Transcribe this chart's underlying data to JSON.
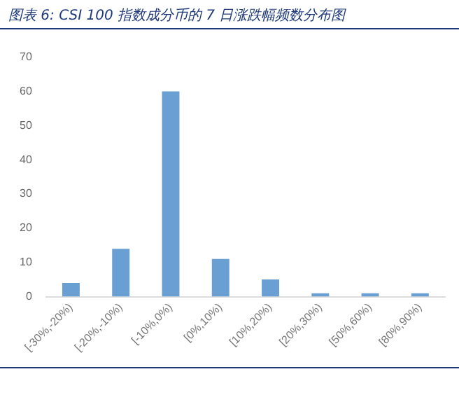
{
  "chart_data": {
    "type": "bar",
    "title": "图表 6:  CSI 100 指数成分币的 7 日涨跌幅频数分布图",
    "categories": [
      "[-30%,-20%)",
      "[-20%,-10%)",
      "[-10%,0%)",
      "[0%,10%)",
      "[10%,20%)",
      "[20%,30%)",
      "[50%,60%)",
      "[80%,90%)"
    ],
    "values": [
      4,
      14,
      60,
      11,
      5,
      1,
      1,
      1
    ],
    "color": "#6a9fd4",
    "ylim": [
      0,
      70
    ],
    "yticks": [
      0,
      10,
      20,
      30,
      40,
      50,
      60,
      70
    ],
    "grid": false,
    "legend": false
  }
}
